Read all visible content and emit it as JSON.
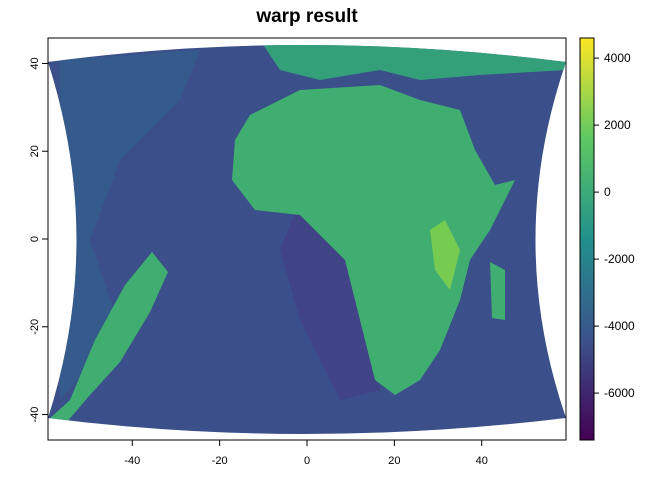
{
  "chart_data": {
    "type": "raster",
    "title": "warp result",
    "xlim": [
      -59.3,
      59.3
    ],
    "ylim": [
      -45.8,
      45.8
    ],
    "xticks": [
      -40,
      -20,
      0,
      20,
      40
    ],
    "yticks": [
      -40,
      -20,
      0,
      20,
      40
    ],
    "zlim": [
      -7400,
      4600
    ],
    "zticks": [
      -6000,
      -4000,
      -2000,
      0,
      2000,
      4000
    ],
    "colors": [
      "#440154",
      "#3b528b",
      "#21908c",
      "#5dc863",
      "#fde725"
    ]
  }
}
